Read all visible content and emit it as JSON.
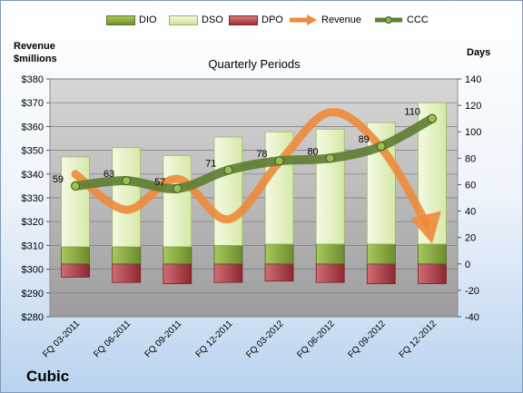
{
  "colors": {
    "dio": "#8fb04a",
    "dso": "#d6e9a8",
    "dpo": "#b6434a",
    "revenue": "#ee8a3a",
    "ccc": "#5f7f33",
    "plot_bg_top": "#d8d8d8",
    "plot_bg_bottom": "#9c9c9c"
  },
  "legend": {
    "dio": "DIO",
    "dso": "DSO",
    "dpo": "DPO",
    "revenue": "Revenue",
    "ccc": "CCC"
  },
  "company": "Cubic",
  "chart_data": {
    "type": "bar",
    "title": "Quarterly Periods",
    "left_axis_label_line1": "Revenue",
    "left_axis_label_line2": "$millions",
    "right_axis_label": "Days",
    "categories": [
      "FQ 03-2011",
      "FQ 06-2011",
      "FQ 09-2011",
      "FQ 12-2011",
      "FQ 03-2012",
      "FQ 06-2012",
      "FQ 09-2012",
      "FQ 12-2012"
    ],
    "left_ylim": [
      280,
      380
    ],
    "left_ticks": [
      "$380",
      "$370",
      "$360",
      "$350",
      "$340",
      "$330",
      "$320",
      "$310",
      "$300",
      "$290",
      "$280"
    ],
    "right_ylim": [
      -40,
      140
    ],
    "right_ticks": [
      "140",
      "120",
      "100",
      "80",
      "60",
      "40",
      "20",
      "0",
      "-20",
      "-40"
    ],
    "series": [
      {
        "name": "DIO",
        "type": "stacked-bar",
        "values": [
          13,
          13,
          13,
          14,
          15,
          15,
          15,
          15
        ]
      },
      {
        "name": "DSO",
        "type": "stacked-bar",
        "values": [
          68,
          75,
          69,
          82,
          85,
          87,
          92,
          107
        ]
      },
      {
        "name": "DPO",
        "type": "negative-bar",
        "values": [
          -10,
          -14,
          -15,
          -14,
          -13,
          -14,
          -15,
          -15
        ]
      },
      {
        "name": "Revenue",
        "type": "line-arrow",
        "axis": "left",
        "values": [
          340,
          325,
          338,
          321,
          345,
          366,
          351,
          313
        ]
      },
      {
        "name": "CCC",
        "type": "line",
        "axis": "right",
        "values": [
          59,
          63,
          57,
          71,
          78,
          80,
          89,
          110
        ],
        "labels": [
          "59",
          "63",
          "57",
          "71",
          "78",
          "80",
          "89",
          "110"
        ]
      }
    ],
    "grid": true
  }
}
